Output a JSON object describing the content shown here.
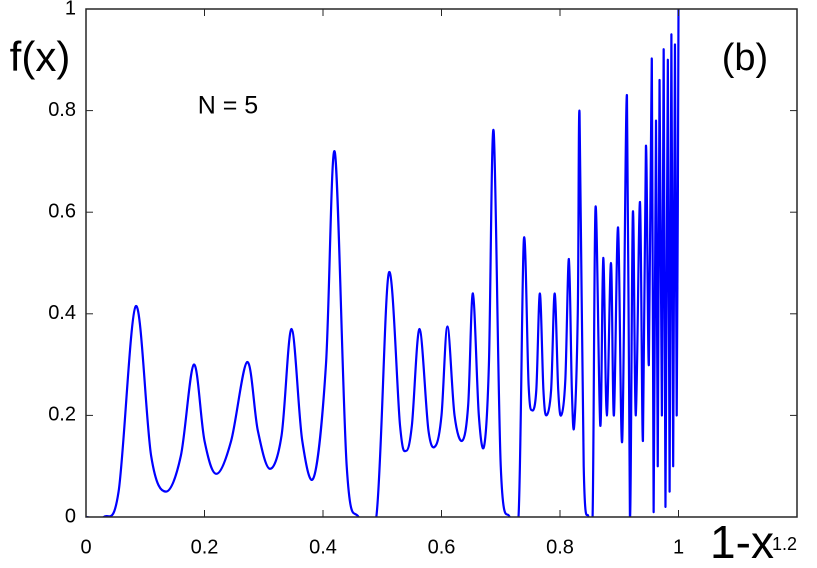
{
  "chart_data": {
    "type": "line",
    "ylabel": "f(x)",
    "xlabel": "1-x",
    "annotations": [
      "(b)",
      "N = 5"
    ],
    "x": [
      0,
      0.03,
      0.055,
      0.084,
      0.11,
      0.135,
      0.16,
      0.182,
      0.2,
      0.22,
      0.245,
      0.272,
      0.29,
      0.31,
      0.33,
      0.347,
      0.365,
      0.385,
      0.405,
      0.42,
      0.44,
      0.46,
      0.49,
      0.511,
      0.53,
      0.54,
      0.55,
      0.563,
      0.578,
      0.59,
      0.6,
      0.61,
      0.622,
      0.635,
      0.645,
      0.653,
      0.663,
      0.672,
      0.68,
      0.688,
      0.7,
      0.715,
      0.73,
      0.739,
      0.747,
      0.753,
      0.76,
      0.766,
      0.772,
      0.777,
      0.785,
      0.791,
      0.797,
      0.802,
      0.809,
      0.815,
      0.82,
      0.824,
      0.83,
      0.833,
      0.84,
      0.848,
      0.855,
      0.86,
      0.868,
      0.873,
      0.879,
      0.886,
      0.891,
      0.898,
      0.905,
      0.913,
      0.918,
      0.923,
      0.928,
      0.935,
      0.94,
      0.945,
      0.95,
      0.955,
      0.958,
      0.962,
      0.965,
      0.968,
      0.972,
      0.975,
      0.978,
      0.982,
      0.985,
      0.988,
      0.991,
      0.994,
      0.997,
      1.0
    ],
    "series": [
      {
        "color": "#0000ff",
        "values": [
          0,
          0,
          0.05,
          0.415,
          0.12,
          0.05,
          0.12,
          0.3,
          0.15,
          0.085,
          0.15,
          0.305,
          0.17,
          0.095,
          0.16,
          0.37,
          0.15,
          0.08,
          0.3,
          0.718,
          0.1,
          0,
          0,
          0.48,
          0.18,
          0.13,
          0.18,
          0.37,
          0.17,
          0.14,
          0.2,
          0.375,
          0.2,
          0.15,
          0.22,
          0.44,
          0.2,
          0.14,
          0.3,
          0.76,
          0.1,
          0,
          0,
          0.546,
          0.26,
          0.21,
          0.25,
          0.44,
          0.25,
          0.2,
          0.25,
          0.44,
          0.25,
          0.2,
          0.27,
          0.508,
          0.25,
          0.18,
          0.4,
          0.795,
          0.1,
          0,
          0,
          0.61,
          0.18,
          0.51,
          0.2,
          0.5,
          0.2,
          0.57,
          0.15,
          0.83,
          0,
          0.6,
          0.2,
          0.62,
          0.15,
          0.73,
          0.3,
          0.9,
          0.01,
          0.78,
          0.1,
          0.86,
          0.2,
          0.92,
          0.02,
          0.9,
          0.05,
          0.95,
          0.1,
          0.93,
          0.2,
          1.0
        ]
      }
    ],
    "xlim": [
      0,
      1.2
    ],
    "ylim": [
      0,
      1
    ],
    "xticks": [
      0,
      0.2,
      0.4,
      0.6,
      0.8,
      1,
      1.2
    ],
    "yticks": [
      0,
      0.2,
      0.4,
      0.6,
      0.8,
      1
    ],
    "grid": false
  }
}
